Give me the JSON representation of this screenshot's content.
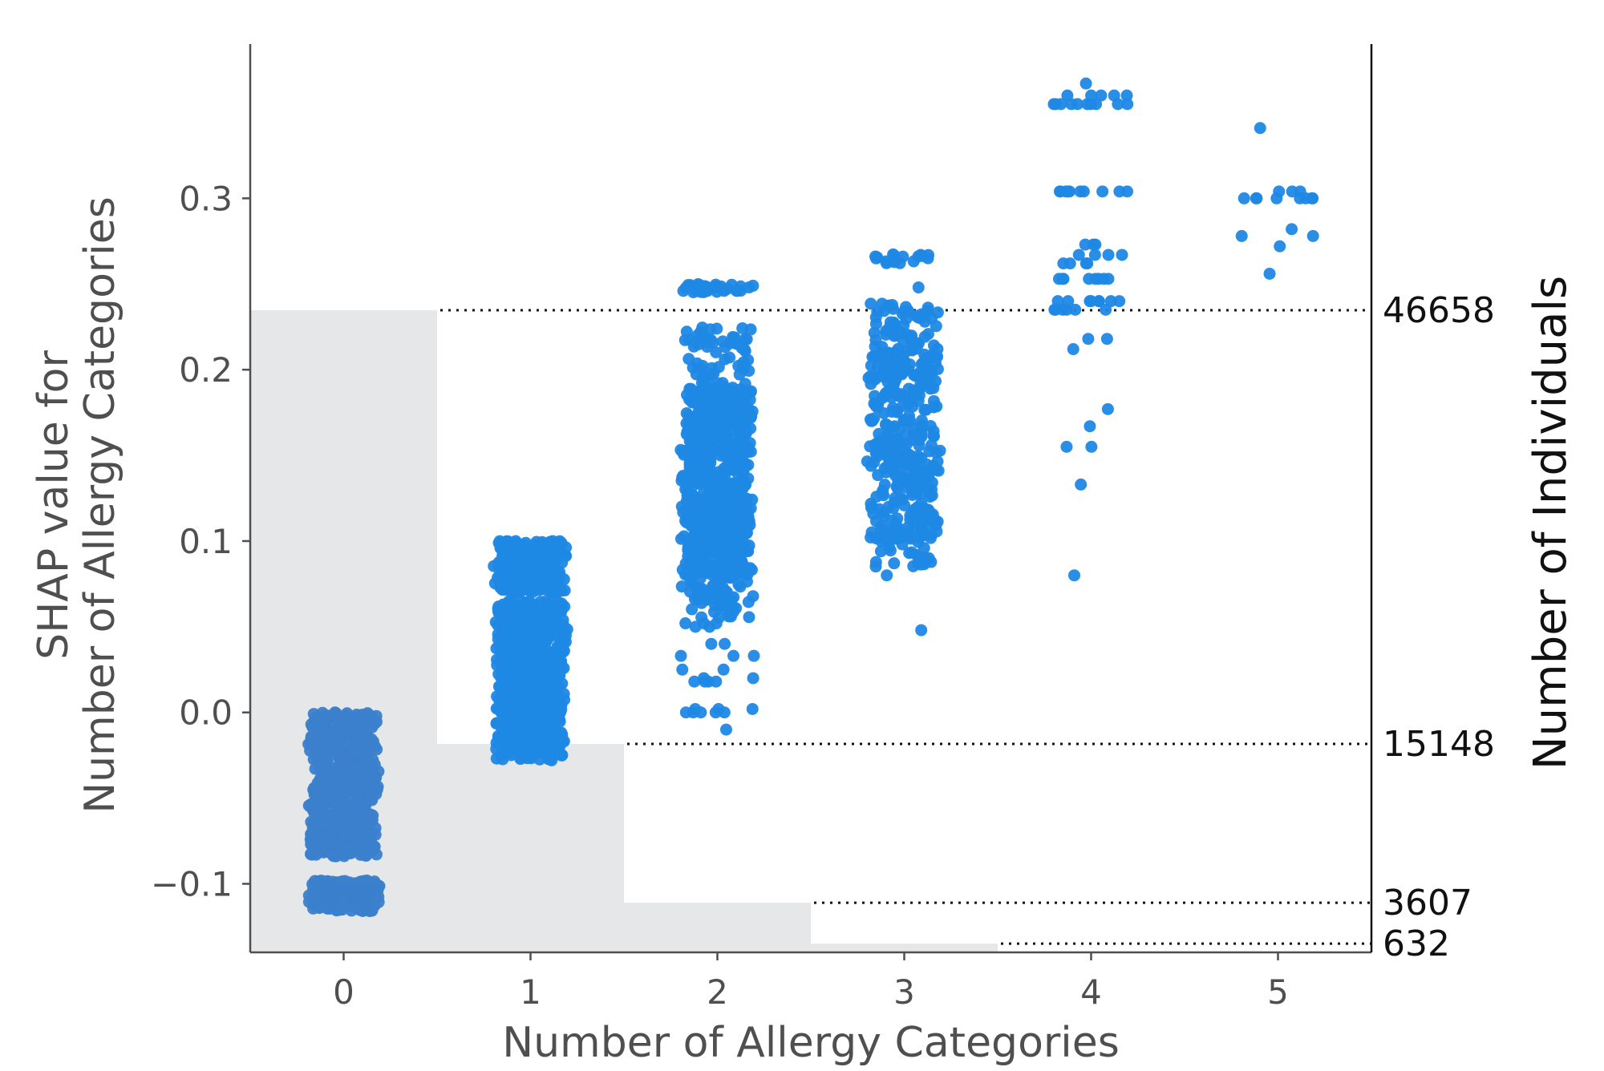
{
  "chart_data": {
    "type": "scatter",
    "xlabel": "Number of Allergy Categories",
    "ylabel_line1": "SHAP value for",
    "ylabel_line2": "Number of Allergy Categories",
    "right_ylabel": "Number of Individuals",
    "x_categories": [
      0,
      1,
      2,
      3,
      4,
      5
    ],
    "xlim": [
      -0.5,
      5.5
    ],
    "ylim": [
      -0.14,
      0.39
    ],
    "y_ticks": [
      -0.1,
      0.0,
      0.1,
      0.2,
      0.3
    ],
    "y_tick_labels": [
      "−0.1",
      "0.0",
      "0.1",
      "0.2",
      "0.3"
    ],
    "x_tick_labels": [
      "0",
      "1",
      "2",
      "3",
      "4",
      "5"
    ],
    "grid": false,
    "colors": {
      "points": "#1f88e5",
      "points_zero": "#3a7fcc",
      "histogram": "#e6e7e8",
      "axis": "#4f4f4f"
    },
    "histogram": {
      "counts": [
        46658,
        15148,
        3607,
        632,
        0,
        0
      ],
      "count_labels": [
        "46658",
        "15148",
        "3607",
        "632"
      ],
      "count_max": 66000
    },
    "series": [
      {
        "x": 0,
        "bands": [
          [
            -0.116,
            -0.098,
            240
          ],
          [
            -0.084,
            -0.0,
            520
          ]
        ]
      },
      {
        "x": 1,
        "bands": [
          [
            -0.028,
            -0.02,
            40
          ],
          [
            -0.02,
            0.065,
            700
          ],
          [
            0.07,
            0.1,
            260
          ]
        ]
      },
      {
        "x": 2,
        "bands": [
          [
            0.08,
            0.19,
            700
          ],
          [
            0.055,
            0.08,
            60
          ],
          [
            0.19,
            0.225,
            60
          ],
          [
            0.245,
            0.25,
            24
          ]
        ],
        "points": [
          [
            -0.01,
            1
          ],
          [
            0.0,
            5
          ],
          [
            0.002,
            3
          ],
          [
            0.018,
            4
          ],
          [
            0.02,
            2
          ],
          [
            0.025,
            2
          ],
          [
            0.033,
            3
          ],
          [
            0.04,
            2
          ],
          [
            0.05,
            2
          ],
          [
            0.052,
            3
          ],
          [
            0.246,
            4
          ]
        ]
      },
      {
        "x": 3,
        "bands": [
          [
            0.1,
            0.21,
            340
          ],
          [
            0.21,
            0.24,
            60
          ],
          [
            0.085,
            0.1,
            20
          ],
          [
            0.262,
            0.268,
            18
          ]
        ],
        "points": [
          [
            0.048,
            1
          ],
          [
            0.08,
            1
          ],
          [
            0.09,
            3
          ],
          [
            0.248,
            1
          ]
        ]
      },
      {
        "x": 4,
        "points": [
          [
            0.08,
            1
          ],
          [
            0.133,
            1
          ],
          [
            0.155,
            2
          ],
          [
            0.167,
            1
          ],
          [
            0.177,
            1
          ],
          [
            0.212,
            1
          ],
          [
            0.218,
            2
          ],
          [
            0.235,
            6
          ],
          [
            0.24,
            8
          ],
          [
            0.253,
            8
          ],
          [
            0.262,
            4
          ],
          [
            0.267,
            4
          ],
          [
            0.273,
            3
          ],
          [
            0.304,
            10
          ],
          [
            0.355,
            10
          ],
          [
            0.36,
            5
          ],
          [
            0.367,
            1
          ]
        ]
      },
      {
        "x": 5,
        "points": [
          [
            0.256,
            1
          ],
          [
            0.272,
            1
          ],
          [
            0.278,
            2
          ],
          [
            0.282,
            1
          ],
          [
            0.3,
            8
          ],
          [
            0.304,
            3
          ],
          [
            0.341,
            1
          ]
        ]
      }
    ]
  }
}
